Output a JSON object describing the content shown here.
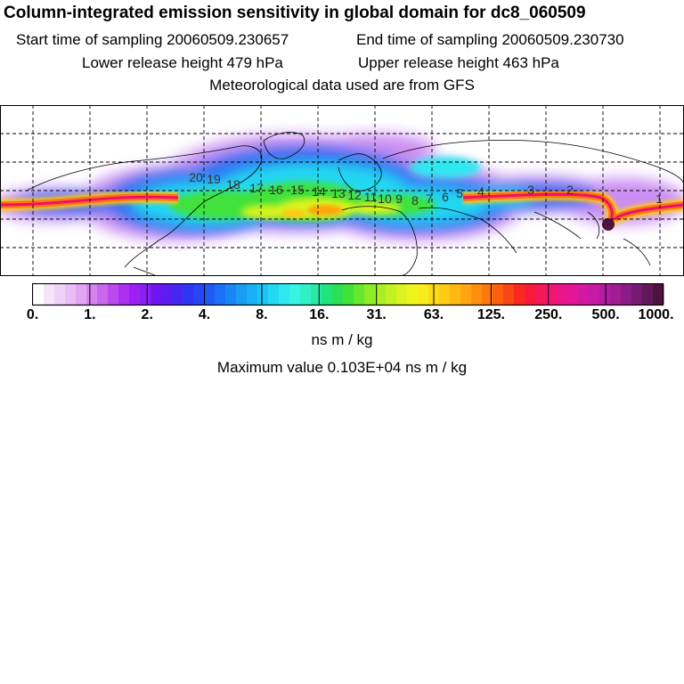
{
  "header": {
    "title": "Column-integrated emission sensitivity in global domain for dc8_060509",
    "start_time": "Start time of sampling 20060509.230657",
    "end_time": "End time of sampling 20060509.230730",
    "lower_height": "Lower release height  479 hPa",
    "upper_height": "Upper release height  463 hPa",
    "met_data": "Meteorological data used are from GFS"
  },
  "colorbar": {
    "tick_labels": [
      "0.",
      "1.",
      "2.",
      "4.",
      "8.",
      "16.",
      "31.",
      "63.",
      "125.",
      "250.",
      "500.",
      "1000."
    ],
    "colors": [
      "#ffffff",
      "#f6e4fb",
      "#f0d2f8",
      "#e9bdf5",
      "#e2a6f2",
      "#d484ef",
      "#c968ee",
      "#bb49ee",
      "#ad2ff0",
      "#9c1ff3",
      "#8c1ff5",
      "#7014f2",
      "#5b1cf1",
      "#4526f3",
      "#2f35f5",
      "#2746f6",
      "#1f5af6",
      "#1b70f5",
      "#1a86f5",
      "#199cf5",
      "#1ab0f6",
      "#1dc4f5",
      "#22d8f2",
      "#2fe8ef",
      "#34f5e3",
      "#2ff0c6",
      "#28eaa5",
      "#1ee47f",
      "#2adf54",
      "#3fe23a",
      "#67e82d",
      "#8bec27",
      "#a9ef24",
      "#c4f121",
      "#dbf31e",
      "#edf51d",
      "#f8ec1b",
      "#fbdc18",
      "#fdca14",
      "#feb811",
      "#fea50f",
      "#fe8f0d",
      "#fd780d",
      "#fd5f10",
      "#fb4516",
      "#f9291f",
      "#f71a3a",
      "#f51758",
      "#f11674",
      "#ec1587",
      "#e21696",
      "#d518a1",
      "#c41aa5",
      "#b21c9f",
      "#a01d95",
      "#8c1c86",
      "#771a73",
      "#621759",
      "#4e133f"
    ],
    "unit": "ns m / kg"
  },
  "max_value": "Maximum value  0.103E+04 ns m / kg",
  "map": {
    "trajectory_labels": [
      "20",
      "19",
      "18",
      "17",
      "16",
      "15",
      "14",
      "13",
      "12",
      "11",
      "10",
      "9",
      "8",
      "7",
      "6",
      "5",
      "4",
      "3",
      "2",
      "1"
    ],
    "trajectory_color": "#f0106a"
  }
}
